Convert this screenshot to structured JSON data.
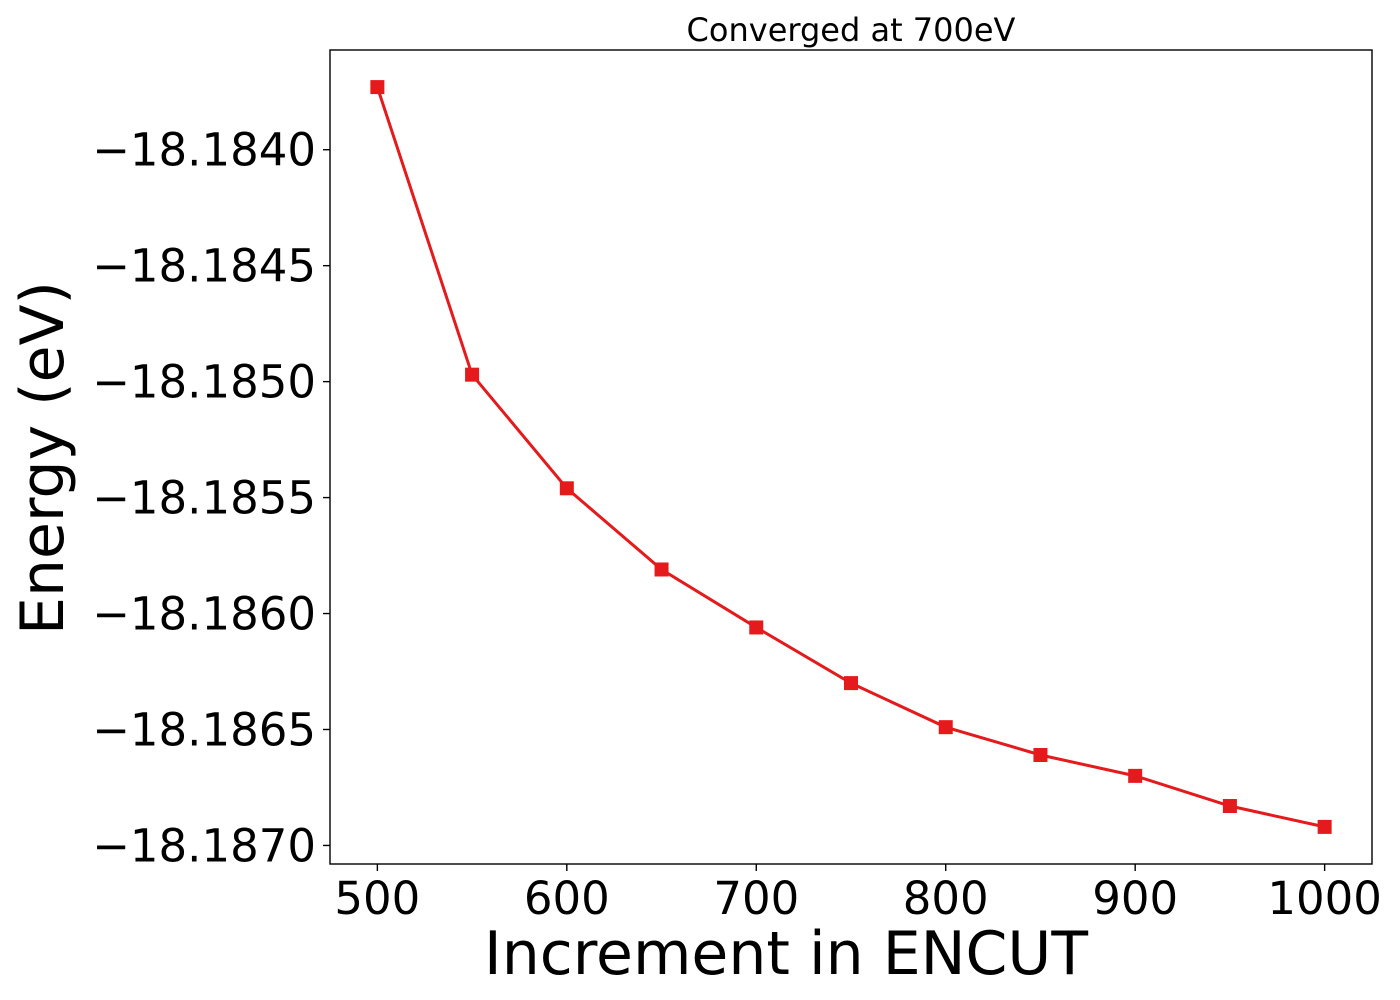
{
  "chart_data": {
    "type": "line",
    "title": "Converged at 700eV",
    "xlabel": "Increment in ENCUT",
    "ylabel": "Energy (eV)",
    "x": [
      500,
      550,
      600,
      650,
      700,
      750,
      800,
      850,
      900,
      950,
      1000
    ],
    "series": [
      {
        "values": [
          -18.18373,
          -18.18497,
          -18.18546,
          -18.18581,
          -18.18606,
          -18.1863,
          -18.18649,
          -18.18661,
          -18.1867,
          -18.18683,
          -18.18692
        ],
        "color": "#e41a1c",
        "marker": "square"
      }
    ],
    "xlim": [
      475,
      1025
    ],
    "ylim": [
      -18.18708,
      -18.18357
    ],
    "xticks": [
      500,
      600,
      700,
      800,
      900,
      1000
    ],
    "xtick_labels": [
      "500",
      "600",
      "700",
      "800",
      "900",
      "1000"
    ],
    "yticks": [
      -18.184,
      -18.1845,
      -18.185,
      -18.1855,
      -18.186,
      -18.1865,
      -18.187
    ],
    "ytick_labels": [
      "−18.1840",
      "−18.1845",
      "−18.1850",
      "−18.1855",
      "−18.1860",
      "−18.1865",
      "−18.1870"
    ],
    "grid": false,
    "legend": false
  }
}
